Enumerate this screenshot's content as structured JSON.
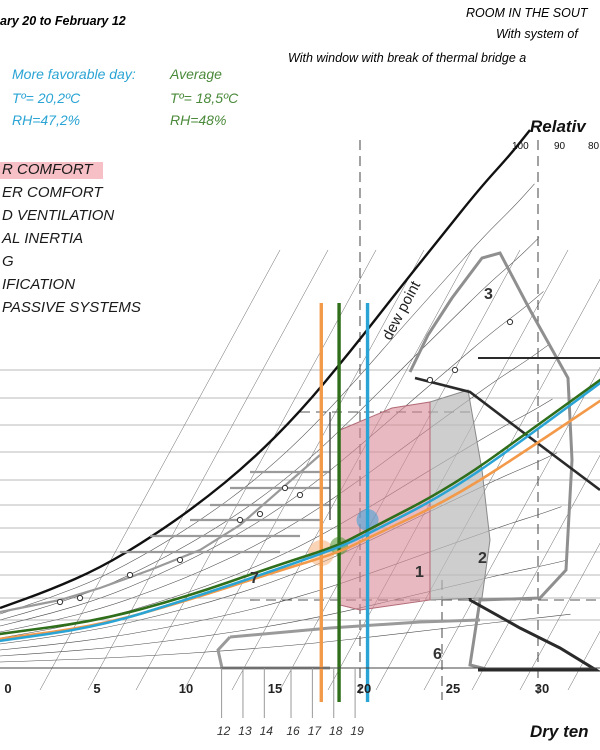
{
  "header": {
    "period": "ary 20 to February 12",
    "room_line1": "ROOM IN THE SOUT",
    "room_line2": "With system of",
    "room_line3": "With window with break of thermal bridge a"
  },
  "stats": {
    "favorable_label": "More favorable day:",
    "favorable_temp": "Tº= 20,2ºC",
    "favorable_rh": "RH=47,2%",
    "average_label": "Average",
    "average_temp": "Tº= 18,5ºC",
    "average_rh": "RH=48%"
  },
  "legend": [
    "R COMFORT",
    "ER COMFORT",
    "D VENTILATION",
    "AL INERTIA",
    "G",
    "IFICATION",
    "PASSIVE SYSTEMS"
  ],
  "labels": {
    "relative": "Relativ",
    "dry_temp": "Dry ten",
    "dew_point": "dew point"
  },
  "chart_data": {
    "type": "line",
    "xlabel": "Dry ten",
    "x_ticks": [
      "0",
      "5",
      "10",
      "15",
      "20",
      "25",
      "30"
    ],
    "xlim": [
      -0.5,
      33.5
    ],
    "rh_ticks": [
      "100",
      "90",
      "80"
    ],
    "hour_ticks": [
      "12",
      "13",
      "14",
      "16",
      "17",
      "18",
      "19"
    ],
    "zones": [
      "1",
      "2",
      "3",
      "6",
      "7"
    ],
    "colors": {
      "orange": "#f39a4a",
      "green": "#2f6e1a",
      "blue": "#2aa4d4",
      "pink": "#cf7a86",
      "grey": "#9a9a9a"
    },
    "vertical_lines": [
      {
        "series": "orange",
        "x": 17.6
      },
      {
        "series": "green",
        "x": 18.6
      },
      {
        "series": "blue",
        "x": 20.2
      }
    ],
    "series": [
      {
        "color": "orange",
        "x": [
          -0.5,
          5,
          10,
          15,
          18.5,
          20,
          25,
          30,
          33.5
        ],
        "y": [
          639,
          626,
          601,
          572,
          553,
          540,
          498,
          440,
          398
        ]
      },
      {
        "color": "green",
        "x": [
          -0.5,
          5,
          10,
          15,
          18.5,
          20,
          25,
          30,
          33.5
        ],
        "y": [
          634,
          621,
          597,
          566,
          546,
          532,
          486,
          422,
          377
        ]
      },
      {
        "color": "blue",
        "x": [
          -0.5,
          5,
          10,
          15,
          18.5,
          20,
          25,
          30,
          33.5
        ],
        "y": [
          641,
          627,
          600,
          570,
          548,
          536,
          490,
          426,
          380
        ]
      }
    ]
  }
}
